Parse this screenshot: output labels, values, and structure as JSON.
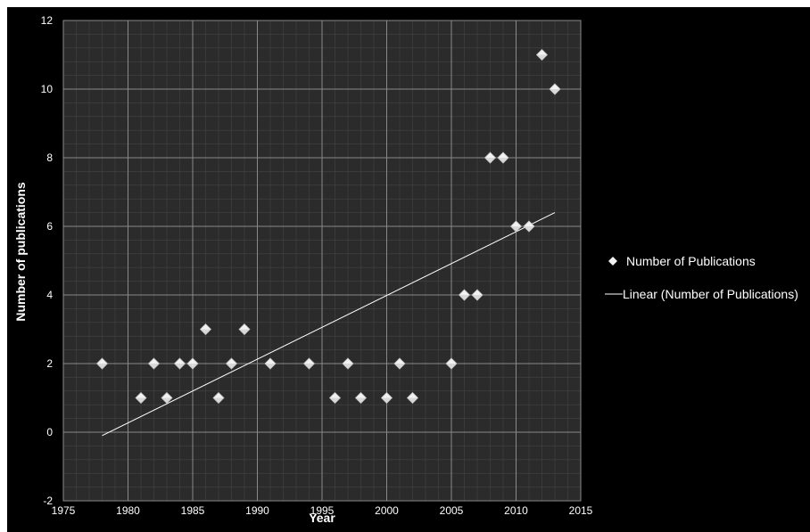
{
  "chart_data": {
    "type": "scatter",
    "title": "",
    "xlabel": "Year",
    "ylabel": "Number of publications",
    "xlim": [
      1975,
      2015
    ],
    "ylim": [
      -2,
      12
    ],
    "x_ticks": [
      1975,
      1980,
      1985,
      1990,
      1995,
      2000,
      2005,
      2010,
      2015
    ],
    "y_ticks": [
      -2,
      0,
      2,
      4,
      6,
      8,
      10,
      12
    ],
    "grid": true,
    "legend_position": "right",
    "series": [
      {
        "name": "Number of Publications",
        "marker": "diamond",
        "color": "#f2f2f2",
        "points": [
          {
            "x": 1978,
            "y": 2
          },
          {
            "x": 1981,
            "y": 1
          },
          {
            "x": 1982,
            "y": 2
          },
          {
            "x": 1983,
            "y": 1
          },
          {
            "x": 1984,
            "y": 2
          },
          {
            "x": 1985,
            "y": 2
          },
          {
            "x": 1986,
            "y": 3
          },
          {
            "x": 1987,
            "y": 1
          },
          {
            "x": 1988,
            "y": 2
          },
          {
            "x": 1989,
            "y": 3
          },
          {
            "x": 1991,
            "y": 2
          },
          {
            "x": 1994,
            "y": 2
          },
          {
            "x": 1996,
            "y": 1
          },
          {
            "x": 1997,
            "y": 2
          },
          {
            "x": 1998,
            "y": 1
          },
          {
            "x": 2000,
            "y": 1
          },
          {
            "x": 2001,
            "y": 2
          },
          {
            "x": 2002,
            "y": 1
          },
          {
            "x": 2005,
            "y": 2
          },
          {
            "x": 2006,
            "y": 4
          },
          {
            "x": 2007,
            "y": 4
          },
          {
            "x": 2008,
            "y": 8
          },
          {
            "x": 2009,
            "y": 8
          },
          {
            "x": 2010,
            "y": 6
          },
          {
            "x": 2011,
            "y": 6
          },
          {
            "x": 2012,
            "y": 11
          },
          {
            "x": 2013,
            "y": 10
          }
        ]
      },
      {
        "name": "Linear (Number of Publications)",
        "type": "line",
        "color": "#ffffff",
        "points": [
          {
            "x": 1978,
            "y": -0.1
          },
          {
            "x": 2013,
            "y": 6.4
          }
        ]
      }
    ]
  }
}
